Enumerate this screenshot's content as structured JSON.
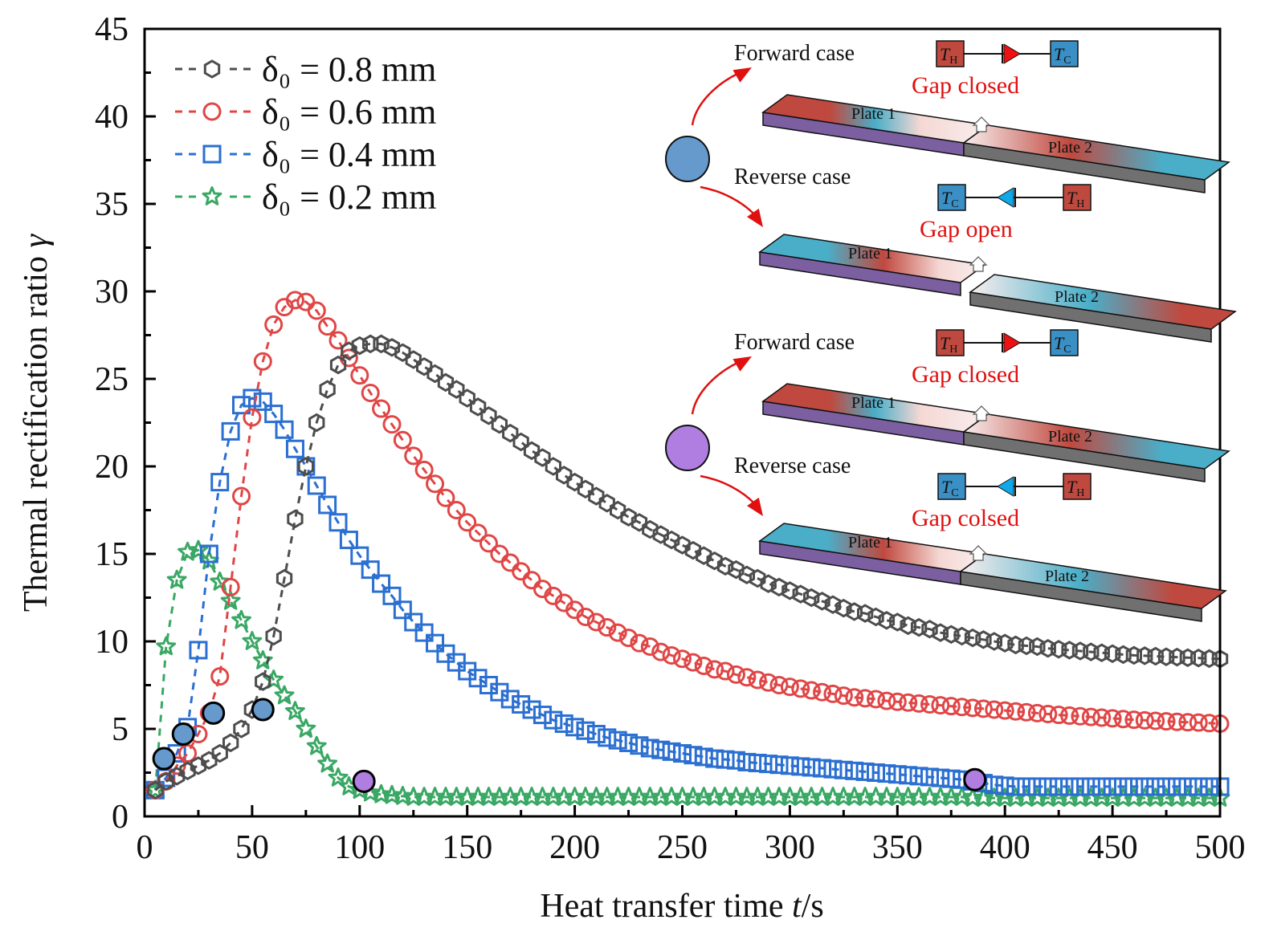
{
  "chart_data": {
    "type": "scatter",
    "title": "",
    "xlabel": "Heat transfer time t/s",
    "ylabel": "Thermal rectification ratio γ",
    "xlim": [
      0,
      500
    ],
    "ylim": [
      0,
      45
    ],
    "xticks": [
      0,
      50,
      100,
      150,
      200,
      250,
      300,
      350,
      400,
      450,
      500
    ],
    "yticks": [
      0,
      5,
      10,
      15,
      20,
      25,
      30,
      35,
      40,
      45
    ],
    "grid": false,
    "legend_position": "top-left",
    "x_step": 5,
    "series": [
      {
        "name": "δ0 = 0.8 mm",
        "legend_label": "δ₀ = 0.8 mm",
        "marker": "hexagon",
        "color": "#4d4d4d",
        "line": "dashed",
        "values": [
          1.5,
          2.0,
          2.3,
          2.6,
          2.9,
          3.2,
          3.6,
          4.2,
          5.0,
          6.1,
          7.7,
          10.3,
          13.6,
          17.0,
          20.0,
          22.5,
          24.4,
          25.8,
          26.6,
          26.9,
          27.0,
          27.0,
          26.8,
          26.5,
          26.1,
          25.7,
          25.3,
          24.8,
          24.4,
          23.9,
          23.4,
          22.9,
          22.4,
          21.9,
          21.4,
          20.9,
          20.5,
          20.0,
          19.5,
          19.1,
          18.7,
          18.3,
          17.9,
          17.5,
          17.1,
          16.8,
          16.4,
          16.1,
          15.8,
          15.5,
          15.2,
          14.9,
          14.6,
          14.3,
          14.1,
          13.8,
          13.6,
          13.3,
          13.1,
          12.9,
          12.7,
          12.5,
          12.3,
          12.1,
          11.9,
          11.7,
          11.6,
          11.4,
          11.2,
          11.1,
          10.9,
          10.8,
          10.7,
          10.5,
          10.4,
          10.3,
          10.2,
          10.1,
          10.0,
          9.9,
          9.8,
          9.75,
          9.7,
          9.6,
          9.55,
          9.5,
          9.45,
          9.4,
          9.35,
          9.3,
          9.25,
          9.2,
          9.18,
          9.15,
          9.12,
          9.1,
          9.07,
          9.05,
          9.02,
          9.0
        ]
      },
      {
        "name": "δ0 = 0.6 mm",
        "legend_label": "δ₀ = 0.6 mm",
        "marker": "circle",
        "color": "#e04646",
        "line": "dashed",
        "values": [
          1.5,
          2.0,
          2.9,
          3.6,
          4.7,
          5.9,
          8.0,
          13.1,
          18.3,
          22.8,
          26.0,
          28.1,
          29.1,
          29.5,
          29.4,
          28.9,
          28.0,
          27.2,
          26.2,
          25.2,
          24.2,
          23.3,
          22.4,
          21.5,
          20.6,
          19.8,
          19.0,
          18.2,
          17.5,
          16.8,
          16.2,
          15.6,
          15.0,
          14.5,
          14.0,
          13.5,
          13.0,
          12.6,
          12.2,
          11.8,
          11.4,
          11.1,
          10.8,
          10.5,
          10.2,
          9.9,
          9.7,
          9.4,
          9.2,
          9.0,
          8.8,
          8.6,
          8.4,
          8.3,
          8.1,
          7.95,
          7.8,
          7.65,
          7.5,
          7.4,
          7.3,
          7.2,
          7.1,
          7.0,
          6.9,
          6.8,
          6.75,
          6.7,
          6.6,
          6.55,
          6.5,
          6.45,
          6.4,
          6.35,
          6.3,
          6.25,
          6.2,
          6.15,
          6.1,
          6.05,
          6.0,
          5.95,
          5.9,
          5.85,
          5.8,
          5.76,
          5.72,
          5.68,
          5.64,
          5.6,
          5.56,
          5.52,
          5.49,
          5.46,
          5.43,
          5.4,
          5.38,
          5.36,
          5.33,
          5.3
        ]
      },
      {
        "name": "δ0 = 0.4 mm",
        "legend_label": "δ₀ = 0.4 mm",
        "marker": "square",
        "color": "#2a6fd1",
        "line": "dashed",
        "values": [
          1.5,
          2.2,
          3.6,
          5.1,
          9.5,
          15.0,
          19.1,
          22.0,
          23.5,
          23.9,
          23.7,
          23.0,
          22.1,
          21.0,
          20.0,
          18.9,
          17.8,
          16.8,
          15.8,
          14.9,
          14.1,
          13.3,
          12.6,
          11.8,
          11.1,
          10.5,
          9.9,
          9.3,
          8.8,
          8.3,
          7.9,
          7.5,
          7.1,
          6.7,
          6.4,
          6.1,
          5.8,
          5.5,
          5.3,
          5.1,
          4.9,
          4.7,
          4.5,
          4.35,
          4.2,
          4.05,
          3.9,
          3.8,
          3.7,
          3.6,
          3.5,
          3.4,
          3.3,
          3.25,
          3.2,
          3.1,
          3.05,
          3.0,
          2.95,
          2.9,
          2.85,
          2.8,
          2.75,
          2.7,
          2.65,
          2.6,
          2.55,
          2.5,
          2.45,
          2.4,
          2.35,
          2.3,
          2.25,
          2.2,
          2.15,
          2.1,
          2.0,
          1.9,
          1.8,
          1.75,
          1.7,
          1.7,
          1.7,
          1.7,
          1.7,
          1.7,
          1.7,
          1.7,
          1.7,
          1.7,
          1.7,
          1.7,
          1.7,
          1.7,
          1.7,
          1.7,
          1.7,
          1.7,
          1.7,
          1.7
        ]
      },
      {
        "name": "δ0 = 0.2 mm",
        "legend_label": "δ₀ = 0.2 mm",
        "marker": "star",
        "color": "#3aa864",
        "line": "dashed",
        "values": [
          1.5,
          9.7,
          13.5,
          15.1,
          15.2,
          14.6,
          13.4,
          12.3,
          11.2,
          10.0,
          8.9,
          7.8,
          6.9,
          6.0,
          5.0,
          4.0,
          3.0,
          2.2,
          1.7,
          1.5,
          1.35,
          1.25,
          1.2,
          1.15,
          1.1,
          1.1,
          1.1,
          1.1,
          1.1,
          1.1,
          1.1,
          1.1,
          1.1,
          1.1,
          1.1,
          1.1,
          1.1,
          1.1,
          1.1,
          1.1,
          1.1,
          1.1,
          1.1,
          1.1,
          1.1,
          1.1,
          1.1,
          1.1,
          1.1,
          1.1,
          1.1,
          1.1,
          1.1,
          1.1,
          1.1,
          1.1,
          1.1,
          1.1,
          1.1,
          1.1,
          1.1,
          1.1,
          1.1,
          1.1,
          1.1,
          1.1,
          1.1,
          1.1,
          1.1,
          1.1,
          1.1,
          1.1,
          1.1,
          1.1,
          1.1,
          1.1,
          1.05,
          1.05,
          1.05,
          1.05,
          1.05,
          1.05,
          1.05,
          1.05,
          1.05,
          1.05,
          1.05,
          1.05,
          1.05,
          1.05,
          1.05,
          1.05,
          1.05,
          1.05,
          1.05,
          1.05,
          1.05,
          1.05,
          1.05,
          1.05
        ]
      }
    ],
    "highlight_points": [
      {
        "group": "blue",
        "color": "#6699cc",
        "x": 9,
        "y": 3.3
      },
      {
        "group": "blue",
        "color": "#6699cc",
        "x": 18,
        "y": 4.7
      },
      {
        "group": "blue",
        "color": "#6699cc",
        "x": 32,
        "y": 5.9
      },
      {
        "group": "blue",
        "color": "#6699cc",
        "x": 55,
        "y": 6.1
      },
      {
        "group": "purple",
        "color": "#b07ee0",
        "x": 102,
        "y": 2.0
      },
      {
        "group": "purple",
        "color": "#b07ee0",
        "x": 386,
        "y": 2.1
      }
    ],
    "annotations": {
      "groups": [
        {
          "marker_color": "#6699cc",
          "forward": {
            "label": "Forward case",
            "hot": "T",
            "hot_sub": "H",
            "cold": "T",
            "cold_sub": "C",
            "state": "Gap closed",
            "plate1": "Plate 1",
            "plate2": "Plate 2"
          },
          "reverse": {
            "label": "Reverse case",
            "hot": "T",
            "hot_sub": "H",
            "cold": "T",
            "cold_sub": "C",
            "state": "Gap open",
            "plate1": "Plate 1",
            "plate2": "Plate 2"
          }
        },
        {
          "marker_color": "#b07ee0",
          "forward": {
            "label": "Forward case",
            "hot": "T",
            "hot_sub": "H",
            "cold": "T",
            "cold_sub": "C",
            "state": "Gap closed",
            "plate1": "Plate 1",
            "plate2": "Plate 2"
          },
          "reverse": {
            "label": "Reverse case",
            "hot": "T",
            "hot_sub": "H",
            "cold": "T",
            "cold_sub": "C",
            "state": "Gap colsed",
            "plate1": "Plate 1",
            "plate2": "Plate 2"
          }
        }
      ]
    }
  },
  "axes": {
    "xlabel_main": "Heat transfer time ",
    "xlabel_var": "t",
    "xlabel_unit": "/s",
    "ylabel_main": "Thermal rectification ratio ",
    "ylabel_var": "γ"
  },
  "colors": {
    "hot": "#c0493f",
    "cold": "#3a8fc4",
    "arrow": "#e01010",
    "plate1_side": "#7b5fa0",
    "plate2_side": "#707070"
  }
}
